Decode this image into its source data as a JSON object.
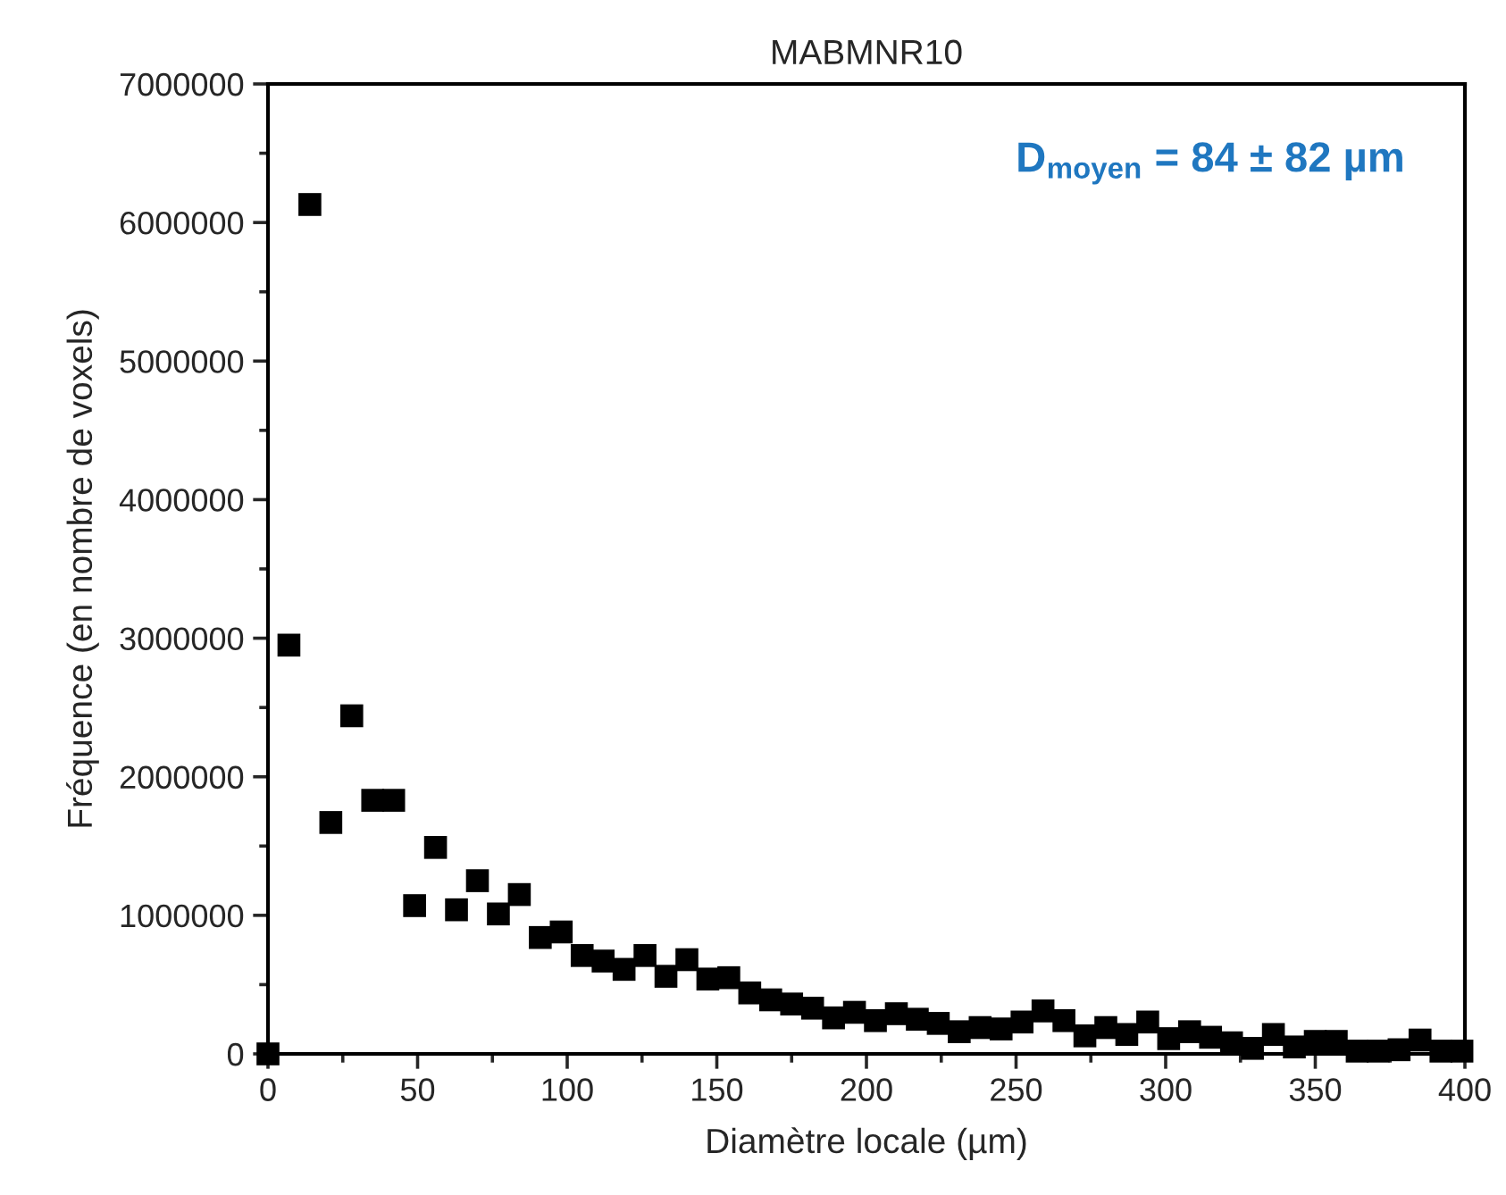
{
  "chart_data": {
    "type": "scatter",
    "title": "MABMNR10",
    "xlabel": "Diamètre locale (µm)",
    "ylabel": "Fréquence (en nombre de voxels)",
    "annotations": [
      "D$_{moyen}$ = 84 ± 82 µm"
    ],
    "x": [
      0,
      7,
      14,
      21,
      28,
      35,
      42,
      49,
      56,
      63,
      70,
      77,
      84,
      91,
      98,
      105,
      112,
      119,
      126,
      133,
      140,
      147,
      154,
      161,
      168,
      175,
      182,
      189,
      196,
      203,
      210,
      217,
      224,
      231,
      238,
      245,
      252,
      259,
      266,
      273,
      280,
      287,
      294,
      301,
      308,
      315,
      322,
      329,
      336,
      343,
      350,
      357,
      364,
      371,
      378,
      385,
      392,
      399
    ],
    "series": [
      {
        "color": "#000000",
        "values": [
          0,
          2950000,
          6130000,
          1670000,
          2440000,
          1830000,
          1830000,
          1070000,
          1490000,
          1040000,
          1250000,
          1010000,
          1150000,
          840000,
          880000,
          710000,
          670000,
          610000,
          710000,
          560000,
          680000,
          540000,
          550000,
          440000,
          390000,
          360000,
          330000,
          260000,
          300000,
          240000,
          290000,
          250000,
          220000,
          160000,
          190000,
          180000,
          230000,
          310000,
          240000,
          130000,
          190000,
          140000,
          230000,
          110000,
          160000,
          120000,
          80000,
          40000,
          140000,
          50000,
          90000,
          90000,
          20000,
          20000,
          30000,
          100000,
          20000,
          20000
        ]
      }
    ],
    "marker": "square",
    "grid": false,
    "legend": false,
    "xlim": [
      0,
      400
    ],
    "xticks": [
      0,
      50,
      100,
      150,
      200,
      250,
      300,
      350,
      400
    ],
    "ylim": [
      0,
      7000000
    ],
    "yticks": [
      0,
      1000000,
      2000000,
      3000000,
      4000000,
      5000000,
      6000000,
      7000000
    ]
  }
}
